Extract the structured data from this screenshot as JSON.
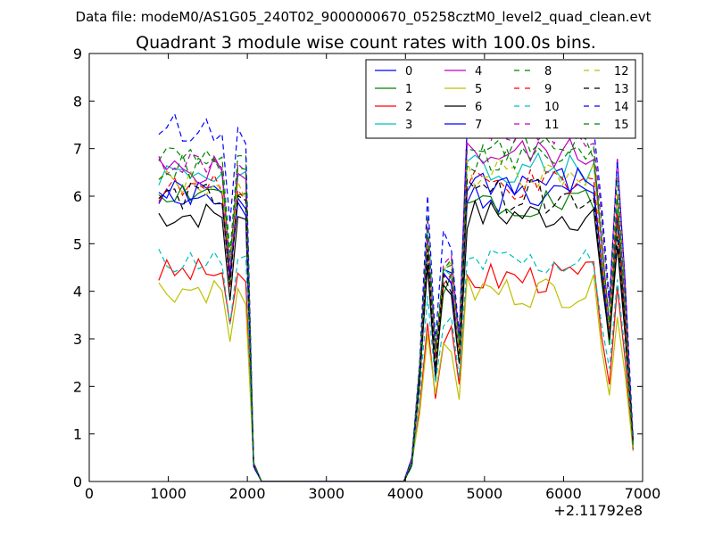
{
  "suptitle": "Data file: modeM0/AS1G05_240T02_9000000670_05258cztM0_level2_quad_clean.evt",
  "chart_data": {
    "type": "line",
    "title": "Quadrant 3 module wise count rates with 100.0s bins.",
    "xlabel": "",
    "ylabel": "",
    "x_offset_label": "+2.11792e8",
    "xlim": [
      0,
      7000
    ],
    "ylim": [
      0,
      9
    ],
    "xticks": [
      "0",
      "1000",
      "2000",
      "3000",
      "4000",
      "5000",
      "6000",
      "7000"
    ],
    "yticks": [
      "0",
      "1",
      "2",
      "3",
      "4",
      "5",
      "6",
      "7",
      "8",
      "9"
    ],
    "grid": false,
    "legend_position": "top-right",
    "x": [
      880,
      980,
      1080,
      1180,
      1280,
      1380,
      1480,
      1580,
      1680,
      1780,
      1880,
      1980,
      2080,
      2180,
      2280,
      2380,
      2480,
      2580,
      2680,
      2780,
      2880,
      2980,
      3080,
      3180,
      3280,
      3380,
      3480,
      3580,
      3680,
      3780,
      3880,
      3980,
      4080,
      4180,
      4280,
      4380,
      4480,
      4580,
      4680,
      4780,
      4880,
      4980,
      5080,
      5180,
      5280,
      5380,
      5480,
      5580,
      5680,
      5780,
      5880,
      5980,
      6080,
      6180,
      6280,
      6380,
      6480,
      6580,
      6680,
      6780,
      6880
    ],
    "series": [
      {
        "name": "0",
        "color": "#0000ff",
        "dash": false,
        "base": 6.05,
        "low": 4.5,
        "high": 6.0
      },
      {
        "name": "1",
        "color": "#008000",
        "dash": false,
        "base": 6.1,
        "low": 4.4,
        "high": 5.9
      },
      {
        "name": "2",
        "color": "#ff0000",
        "dash": false,
        "base": 4.4,
        "low": 3.2,
        "high": 4.3
      },
      {
        "name": "3",
        "color": "#00bfbf",
        "dash": false,
        "base": 6.5,
        "low": 4.8,
        "high": 6.6
      },
      {
        "name": "4",
        "color": "#bf00bf",
        "dash": false,
        "base": 6.55,
        "low": 4.6,
        "high": 6.9
      },
      {
        "name": "5",
        "color": "#bfbf00",
        "dash": false,
        "base": 4.05,
        "low": 3.0,
        "high": 4.0
      },
      {
        "name": "6",
        "color": "#000000",
        "dash": false,
        "base": 5.6,
        "low": 4.2,
        "high": 5.6
      },
      {
        "name": "7",
        "color": "#0000ff",
        "dash": false,
        "base": 5.9,
        "low": 4.4,
        "high": 6.3
      },
      {
        "name": "8",
        "color": "#008000",
        "dash": true,
        "base": 6.9,
        "low": 4.9,
        "high": 7.1
      },
      {
        "name": "9",
        "color": "#ff0000",
        "dash": true,
        "base": 6.15,
        "low": 4.5,
        "high": 6.2
      },
      {
        "name": "10",
        "color": "#00bfbf",
        "dash": true,
        "base": 4.65,
        "low": 3.5,
        "high": 4.6
      },
      {
        "name": "11",
        "color": "#bf00bf",
        "dash": true,
        "base": 6.7,
        "low": 4.8,
        "high": 7.4
      },
      {
        "name": "12",
        "color": "#bfbf00",
        "dash": true,
        "base": 6.3,
        "low": 4.6,
        "high": 6.5
      },
      {
        "name": "13",
        "color": "#000000",
        "dash": true,
        "base": 6.0,
        "low": 4.4,
        "high": 6.0
      },
      {
        "name": "14",
        "color": "#0000ff",
        "dash": true,
        "base": 7.45,
        "low": 5.3,
        "high": 7.7
      },
      {
        "name": "15",
        "color": "#008000",
        "dash": true,
        "base": 6.6,
        "low": 4.9,
        "high": 6.8
      }
    ]
  }
}
